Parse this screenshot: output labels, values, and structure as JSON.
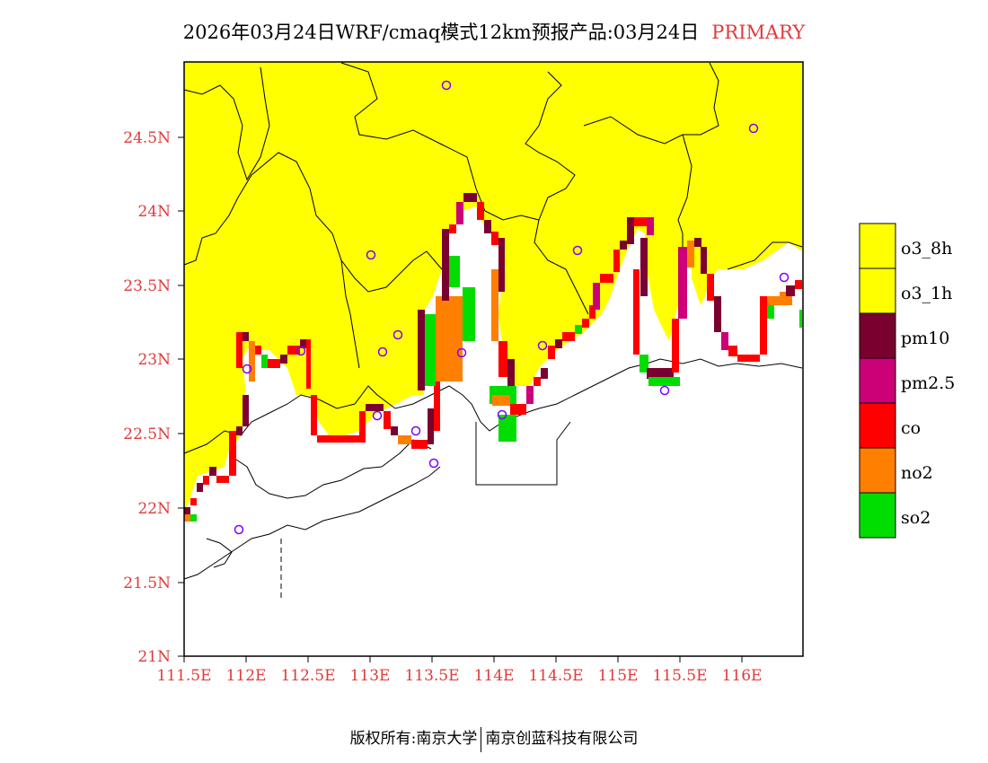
{
  "title": {
    "main": "2026年03月24日WRF/cmaq模式12km预报产品:03月24日",
    "suffix": "PRIMARY"
  },
  "map": {
    "lat_labels": [
      "24.5N",
      "24N",
      "23.5N",
      "23N",
      "22.5N",
      "22N",
      "21.5N",
      "21N"
    ],
    "lon_labels": [
      "111.5E",
      "112E",
      "112.5E",
      "113E",
      "113.5E",
      "114E",
      "114.5E",
      "115E",
      "115.5E",
      "116E"
    ],
    "lat_range": [
      21,
      25
    ],
    "lon_range": [
      111.5,
      116.5
    ]
  },
  "legend": {
    "items": [
      {
        "label": "o3_8h",
        "color": "#ffff00"
      },
      {
        "label": "o3_1h",
        "color": "#ffff00"
      },
      {
        "label": "pm10",
        "color": "#7a0030"
      },
      {
        "label": "pm2.5",
        "color": "#cc0077"
      },
      {
        "label": "co",
        "color": "#ff0000"
      },
      {
        "label": "no2",
        "color": "#ff7f00"
      },
      {
        "label": "so2",
        "color": "#00dd00"
      }
    ]
  },
  "footer": {
    "left": "版权所有:南京大学",
    "right": "南京创蓝科技有限公司"
  }
}
